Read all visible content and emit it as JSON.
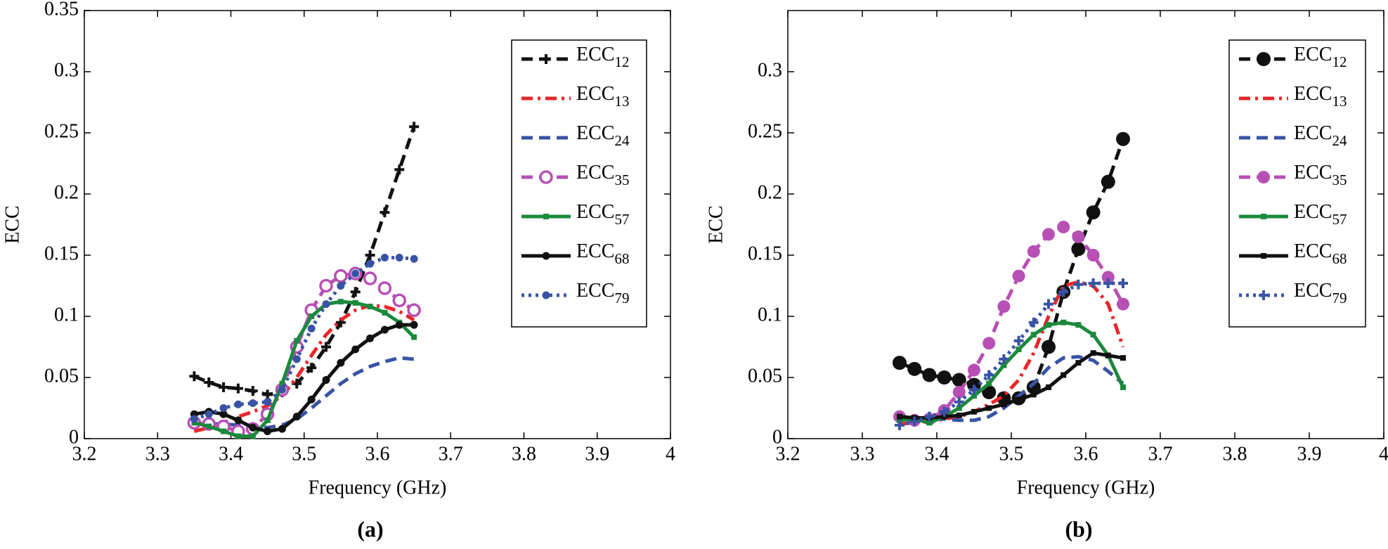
{
  "chart_data": [
    {
      "type": "line",
      "caption": "(a)",
      "xlabel": "Frequency (GHz)",
      "ylabel": "ECC",
      "xlim": [
        3.2,
        4
      ],
      "ylim": [
        0,
        0.35
      ],
      "xticks": [
        3.2,
        3.3,
        3.4,
        3.5,
        3.6,
        3.7,
        3.8,
        3.9,
        4
      ],
      "yticks": [
        0,
        0.05,
        0.1,
        0.15,
        0.2,
        0.25,
        0.3,
        0.35
      ],
      "x": [
        3.35,
        3.37,
        3.39,
        3.41,
        3.43,
        3.45,
        3.47,
        3.49,
        3.51,
        3.53,
        3.55,
        3.57,
        3.59,
        3.61,
        3.63,
        3.65
      ],
      "series": [
        {
          "name": "ECC12",
          "color": "#111111",
          "dash": "dashed",
          "marker": "plus",
          "values": [
            0.051,
            0.046,
            0.042,
            0.041,
            0.039,
            0.036,
            0.038,
            0.045,
            0.058,
            0.075,
            0.095,
            0.12,
            0.15,
            0.185,
            0.22,
            0.255
          ]
        },
        {
          "name": "ECC13",
          "color": "#e8262a",
          "dash": "dashdot",
          "marker": "none",
          "values": [
            0.006,
            0.009,
            0.013,
            0.018,
            0.022,
            0.027,
            0.035,
            0.05,
            0.068,
            0.085,
            0.097,
            0.105,
            0.109,
            0.108,
            0.104,
            0.097
          ]
        },
        {
          "name": "ECC24",
          "color": "#3953a4",
          "dash": "dashed",
          "marker": "none",
          "values": [
            0.012,
            0.012,
            0.012,
            0.011,
            0.01,
            0.009,
            0.011,
            0.016,
            0.025,
            0.035,
            0.045,
            0.053,
            0.059,
            0.063,
            0.066,
            0.065
          ]
        },
        {
          "name": "ECC35",
          "color": "#b84fb5",
          "dash": "dashed",
          "marker": "open-circle",
          "values": [
            0.013,
            0.012,
            0.01,
            0.006,
            0.008,
            0.02,
            0.04,
            0.075,
            0.105,
            0.125,
            0.133,
            0.135,
            0.131,
            0.123,
            0.113,
            0.105
          ]
        },
        {
          "name": "ECC57",
          "color": "#1a8a3c",
          "dash": "solid",
          "marker": "square",
          "values": [
            0.013,
            0.01,
            0.006,
            0.002,
            0.002,
            0.015,
            0.045,
            0.08,
            0.1,
            0.11,
            0.112,
            0.111,
            0.108,
            0.103,
            0.095,
            0.083
          ]
        },
        {
          "name": "ECC68",
          "color": "#111111",
          "dash": "solid",
          "marker": "dot",
          "values": [
            0.02,
            0.022,
            0.02,
            0.015,
            0.009,
            0.006,
            0.008,
            0.018,
            0.032,
            0.048,
            0.062,
            0.073,
            0.082,
            0.089,
            0.093,
            0.093
          ]
        },
        {
          "name": "ECC79",
          "color": "#3953a4",
          "dash": "dotted",
          "marker": "dot",
          "values": [
            0.016,
            0.02,
            0.025,
            0.028,
            0.029,
            0.03,
            0.04,
            0.065,
            0.09,
            0.11,
            0.125,
            0.135,
            0.143,
            0.148,
            0.148,
            0.147
          ]
        }
      ]
    },
    {
      "type": "line",
      "caption": "(b)",
      "xlabel": "Frequency (GHz)",
      "ylabel": "ECC",
      "xlim": [
        3.2,
        4
      ],
      "ylim": [
        0,
        0.35
      ],
      "xticks": [
        3.2,
        3.3,
        3.4,
        3.5,
        3.6,
        3.7,
        3.8,
        3.9,
        4
      ],
      "yticks": [
        0,
        0.05,
        0.1,
        0.15,
        0.2,
        0.25,
        0.3
      ],
      "x": [
        3.35,
        3.37,
        3.39,
        3.41,
        3.43,
        3.45,
        3.47,
        3.49,
        3.51,
        3.53,
        3.55,
        3.57,
        3.59,
        3.61,
        3.63,
        3.65
      ],
      "series": [
        {
          "name": "ECC12",
          "color": "#111111",
          "dash": "dashed",
          "marker": "big-circle",
          "values": [
            0.062,
            0.057,
            0.052,
            0.05,
            0.048,
            0.044,
            0.038,
            0.033,
            0.033,
            0.042,
            0.075,
            0.12,
            0.155,
            0.185,
            0.21,
            0.245
          ]
        },
        {
          "name": "ECC13",
          "color": "#e8262a",
          "dash": "dashdot",
          "marker": "none",
          "values": [
            0.012,
            0.013,
            0.014,
            0.016,
            0.018,
            0.022,
            0.028,
            0.035,
            0.048,
            0.07,
            0.1,
            0.125,
            0.128,
            0.125,
            0.11,
            0.075
          ]
        },
        {
          "name": "ECC24",
          "color": "#3953a4",
          "dash": "dashed",
          "marker": "none",
          "values": [
            0.017,
            0.016,
            0.016,
            0.016,
            0.015,
            0.015,
            0.018,
            0.025,
            0.035,
            0.045,
            0.058,
            0.066,
            0.067,
            0.064,
            0.055,
            0.045
          ]
        },
        {
          "name": "ECC35",
          "color": "#b84fb5",
          "dash": "dashed",
          "marker": "filled-circle",
          "values": [
            0.018,
            0.015,
            0.016,
            0.023,
            0.038,
            0.056,
            0.078,
            0.108,
            0.133,
            0.153,
            0.167,
            0.173,
            0.165,
            0.15,
            0.132,
            0.11
          ]
        },
        {
          "name": "ECC57",
          "color": "#1a8a3c",
          "dash": "solid",
          "marker": "square",
          "values": [
            0.015,
            0.016,
            0.013,
            0.018,
            0.025,
            0.035,
            0.045,
            0.06,
            0.073,
            0.085,
            0.093,
            0.095,
            0.093,
            0.085,
            0.068,
            0.042
          ]
        },
        {
          "name": "ECC68",
          "color": "#111111",
          "dash": "solid",
          "marker": "square",
          "values": [
            0.018,
            0.017,
            0.017,
            0.018,
            0.019,
            0.022,
            0.025,
            0.028,
            0.032,
            0.036,
            0.042,
            0.052,
            0.062,
            0.07,
            0.068,
            0.066
          ]
        },
        {
          "name": "ECC79",
          "color": "#3953a4",
          "dash": "dotted",
          "marker": "plus",
          "values": [
            0.011,
            0.014,
            0.018,
            0.022,
            0.03,
            0.04,
            0.052,
            0.065,
            0.08,
            0.095,
            0.11,
            0.12,
            0.126,
            0.127,
            0.127,
            0.127
          ]
        }
      ]
    }
  ]
}
